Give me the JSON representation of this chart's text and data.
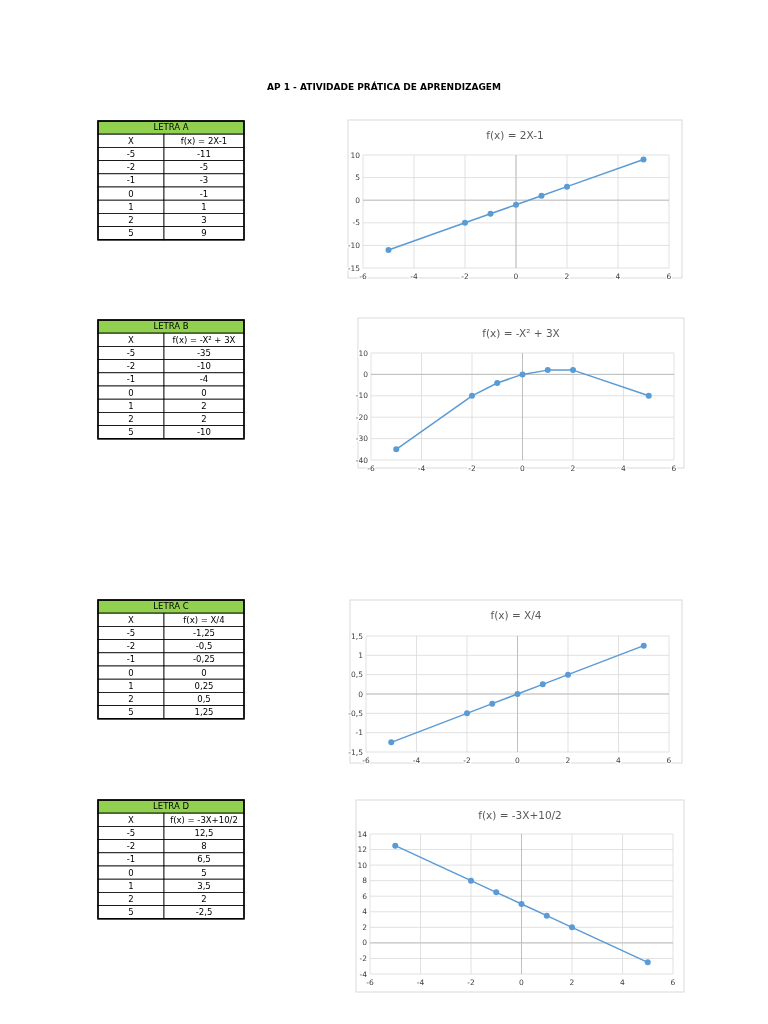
{
  "chart_data": [
    {
      "type": "line",
      "title": "f(x) = 2X-1",
      "annotations": [
        "AP 1 - ATIVIDADE PRÁTICA DE APRENDIZAGEM",
        "LETRA A",
        "X",
        "f(x) = 2X-1",
        "-5",
        "-2",
        "-1",
        "0",
        "1",
        "2",
        "5"
      ],
      "x": [
        -5,
        -2,
        -1,
        0,
        1,
        2,
        5
      ],
      "series": [
        {
          "color": "#5b9bd5",
          "values": [
            -11,
            -5,
            -3,
            -1,
            1,
            3,
            9
          ]
        }
      ],
      "value_labels": [
        "-11",
        "-5",
        "-3",
        "-1",
        "1",
        "3",
        "9"
      ],
      "xlim": [
        -6,
        6
      ],
      "xticks": [
        -6,
        -4,
        -2,
        0,
        2,
        4,
        6
      ],
      "ylim": [
        -15,
        10
      ],
      "yticks": [
        -15,
        -10,
        -5,
        0,
        5,
        10
      ],
      "grid": true,
      "marker": "circle"
    },
    {
      "type": "line",
      "title": "f(x) = -X² + 3X",
      "annotations": [
        "LETRA B",
        "X",
        "f(x) = -X² + 3X",
        "-5",
        "-2",
        "-1",
        "0",
        "1",
        "2",
        "5"
      ],
      "x": [
        -5,
        -2,
        -1,
        0,
        1,
        2,
        5
      ],
      "series": [
        {
          "color": "#5b9bd5",
          "values": [
            -35,
            -10,
            -4,
            0,
            2,
            2,
            -10
          ]
        }
      ],
      "value_labels": [
        "-35",
        "-10",
        "-4",
        "0",
        "2",
        "2",
        "-10"
      ],
      "xlim": [
        -6,
        6
      ],
      "xticks": [
        -6,
        -4,
        -2,
        0,
        2,
        4,
        6
      ],
      "ylim": [
        -40,
        10
      ],
      "yticks": [
        -40,
        -30,
        -20,
        -10,
        0,
        10
      ],
      "grid": true,
      "marker": "circle"
    },
    {
      "type": "line",
      "title": "f(x) = X/4",
      "annotations": [
        "LETRA C",
        "X",
        "f(x) = X/4",
        "-5",
        "-2",
        "-1",
        "0",
        "1",
        "2",
        "5"
      ],
      "x": [
        -5,
        -2,
        -1,
        0,
        1,
        2,
        5
      ],
      "series": [
        {
          "color": "#5b9bd5",
          "values": [
            -1.25,
            -0.5,
            -0.25,
            0,
            0.25,
            0.5,
            1.25
          ]
        }
      ],
      "value_labels": [
        "-1,25",
        "-0,5",
        "-0,25",
        "0",
        "0,25",
        "0,5",
        "1,25"
      ],
      "xlim": [
        -6,
        6
      ],
      "xticks": [
        -6,
        -4,
        -2,
        0,
        2,
        4,
        6
      ],
      "ylim": [
        -1.5,
        1.5
      ],
      "yticks": [
        {
          "value": -1.5,
          "label": "-1,5"
        },
        -1,
        {
          "value": -0.5,
          "label": "-0,5"
        },
        0,
        {
          "value": 0.5,
          "label": "0,5"
        },
        1,
        {
          "value": 1.5,
          "label": "1,5"
        }
      ],
      "grid": true,
      "marker": "circle"
    },
    {
      "type": "line",
      "title": "f(x) = -3X+10/2",
      "annotations": [
        "LETRA D",
        "X",
        "f(x) = -3X+10/2",
        "-5",
        "-2",
        "-1",
        "0",
        "1",
        "2",
        "5"
      ],
      "x": [
        -5,
        -2,
        -1,
        0,
        1,
        2,
        5
      ],
      "series": [
        {
          "color": "#5b9bd5",
          "values": [
            12.5,
            8,
            6.5,
            5,
            3.5,
            2,
            -2.5
          ]
        }
      ],
      "value_labels": [
        "12,5",
        "8",
        "6,5",
        "5",
        "3,5",
        "2",
        "-2,5"
      ],
      "xlim": [
        -6,
        6
      ],
      "xticks": [
        -6,
        -4,
        -2,
        0,
        2,
        4,
        6
      ],
      "ylim": [
        -4,
        14
      ],
      "yticks": [
        -4,
        -2,
        0,
        2,
        4,
        6,
        8,
        10,
        12,
        14
      ],
      "grid": true,
      "marker": "circle"
    }
  ]
}
